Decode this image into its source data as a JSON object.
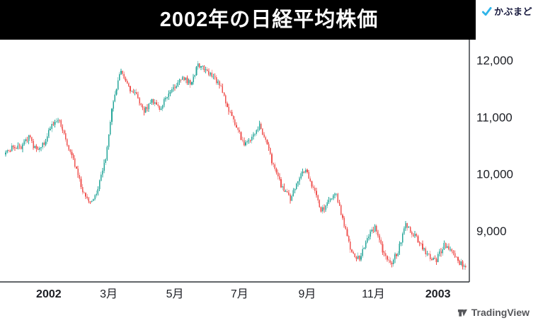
{
  "header": {
    "title": "2002年の日経平均株価",
    "brand": "かぶまど"
  },
  "attribution": {
    "text": "TradingView"
  },
  "colors": {
    "up": "#26a69a",
    "down": "#ef5350",
    "title_bar": "#000000",
    "axis_line": "#2f3338",
    "label": "#1c1e24",
    "brand_blue": "#2fb4e9",
    "brand_text": "#15173c",
    "attribution_gray": "#55565a"
  },
  "chart_data": {
    "type": "candlestick",
    "title": "2002年の日経平均株価",
    "ylim": [
      8100,
      12340
    ],
    "grid": false,
    "legend": "none",
    "y_ticks": [
      {
        "value": 12000,
        "label": "12,000"
      },
      {
        "value": 11000,
        "label": "11,000"
      },
      {
        "value": 10000,
        "label": "10,000"
      },
      {
        "value": 9000,
        "label": "9,000"
      }
    ],
    "x_ticks": [
      {
        "label": "2002",
        "day": 28,
        "bold": true
      },
      {
        "label": "3月",
        "day": 67,
        "bold": false
      },
      {
        "label": "5月",
        "day": 110,
        "bold": false
      },
      {
        "label": "7月",
        "day": 152,
        "bold": false
      },
      {
        "label": "9月",
        "day": 196,
        "bold": false
      },
      {
        "label": "11月",
        "day": 239,
        "bold": false
      },
      {
        "label": "2003",
        "day": 281,
        "bold": true
      }
    ],
    "anchor_interval_trading_days": 5,
    "weekly_closes": [
      10350,
      10500,
      10450,
      10650,
      10400,
      10550,
      10850,
      10950,
      10550,
      10150,
      9700,
      9500,
      9750,
      10300,
      11300,
      11850,
      11500,
      11400,
      11100,
      11300,
      11150,
      11350,
      11550,
      11700,
      11600,
      11900,
      11850,
      11700,
      11500,
      11100,
      10850,
      10500,
      10650,
      10850,
      10500,
      10050,
      9750,
      9550,
      9900,
      10100,
      9750,
      9350,
      9500,
      9650,
      9100,
      8600,
      8500,
      8900,
      9050,
      8650,
      8400,
      8650,
      9100,
      8950,
      8750,
      8550,
      8500,
      8750,
      8650,
      8450,
      8350
    ]
  }
}
